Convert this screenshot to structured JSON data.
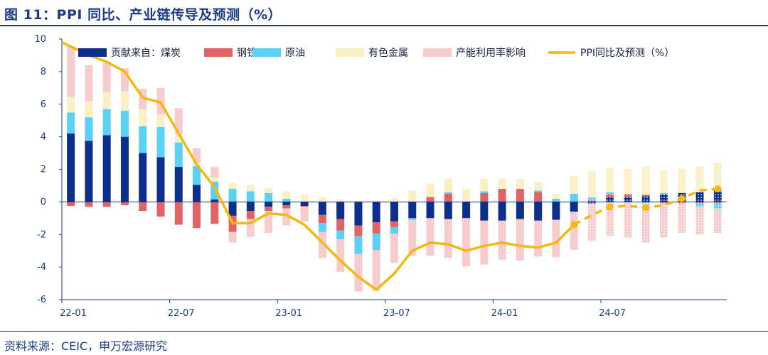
{
  "header": {
    "title": "图 11：PPI 同比、产业链传导及预测（%）"
  },
  "footer": {
    "source": "资料来源：CEIC，申万宏源研究"
  },
  "colors": {
    "coal": "#0d2f8c",
    "steel": "#e06464",
    "oil": "#5bd1f5",
    "metals": "#fbefc4",
    "capacity": "#f7cccc",
    "ppi": "#f5b80f",
    "axis": "#1a3a8a"
  },
  "chart_data": {
    "type": "bar",
    "stacked": true,
    "x": [
      "22-01",
      "22-02",
      "22-03",
      "22-04",
      "22-05",
      "22-06",
      "22-07",
      "22-08",
      "22-09",
      "22-10",
      "22-11",
      "22-12",
      "23-01",
      "23-02",
      "23-03",
      "23-04",
      "23-05",
      "23-06",
      "23-07",
      "23-08",
      "23-09",
      "23-10",
      "23-11",
      "23-12",
      "24-01",
      "24-02",
      "24-03",
      "24-04",
      "24-05",
      "24-06",
      "24-07",
      "24-08",
      "24-09",
      "24-10",
      "24-11",
      "24-12",
      "25-01"
    ],
    "xticks": [
      "22-01",
      "22-07",
      "23-01",
      "23-07",
      "24-01",
      "24-07"
    ],
    "ylim": [
      -6,
      10
    ],
    "yticks": [
      -6,
      -4,
      -2,
      0,
      2,
      4,
      6,
      8,
      10
    ],
    "forecast_start": "24-06",
    "series": [
      {
        "name": "贡献来自：煤炭",
        "key": "coal",
        "values": [
          4.2,
          3.75,
          4.1,
          4.0,
          3.0,
          2.75,
          2.15,
          1.05,
          0.15,
          -0.85,
          -0.55,
          -0.3,
          -0.2,
          -0.25,
          -0.8,
          -1.05,
          -1.45,
          -1.25,
          -1.2,
          -1.0,
          -1.0,
          -1.05,
          -1.0,
          -1.15,
          -1.15,
          -1.05,
          -1.15,
          -1.1,
          -0.6,
          -0.1,
          0.3,
          0.3,
          0.35,
          0.45,
          0.55,
          0.6,
          0.7
        ]
      },
      {
        "name": "钢铁",
        "key": "steel",
        "values": [
          -0.25,
          -0.3,
          -0.3,
          -0.2,
          -0.55,
          -0.9,
          -1.4,
          -1.6,
          -1.35,
          -1.0,
          -0.5,
          -0.25,
          -0.2,
          -0.05,
          -0.5,
          -0.7,
          -0.65,
          -0.7,
          -0.35,
          0.0,
          0.3,
          0.5,
          0.0,
          0.55,
          0.8,
          0.8,
          0.6,
          0.0,
          0.0,
          0.1,
          0.2,
          0.2,
          0.1,
          -0.1,
          -0.1,
          -0.1,
          -0.1
        ]
      },
      {
        "name": "原油",
        "key": "oil",
        "values": [
          1.3,
          1.45,
          1.6,
          1.6,
          1.65,
          1.85,
          1.5,
          1.15,
          1.1,
          0.8,
          0.65,
          0.55,
          0.2,
          0.0,
          -0.55,
          -0.55,
          -1.1,
          -1.0,
          -0.4,
          -0.1,
          0.0,
          0.1,
          0.0,
          0.1,
          0.0,
          0.0,
          0.1,
          0.2,
          0.5,
          0.2,
          0.1,
          0.0,
          -0.1,
          0.1,
          0.0,
          -0.2,
          -0.3
        ]
      },
      {
        "name": "有色金属",
        "key": "metals",
        "values": [
          0.95,
          1.0,
          1.05,
          1.2,
          1.05,
          0.75,
          0.5,
          0.2,
          0.25,
          0.35,
          0.4,
          0.3,
          0.45,
          0.45,
          0.3,
          0.15,
          0.1,
          0.0,
          0.25,
          0.7,
          0.85,
          0.8,
          0.8,
          0.75,
          0.65,
          0.6,
          0.5,
          0.3,
          1.1,
          1.6,
          1.5,
          1.55,
          1.7,
          1.4,
          1.5,
          1.6,
          1.7
        ]
      },
      {
        "name": "产能利用率影响",
        "key": "capacity",
        "values": [
          3.1,
          2.2,
          1.8,
          1.4,
          1.25,
          1.65,
          1.6,
          0.9,
          0.65,
          -0.65,
          -1.1,
          -1.35,
          -1.05,
          -0.9,
          -1.6,
          -2.0,
          -2.3,
          -2.5,
          -1.8,
          -2.2,
          -2.3,
          -2.4,
          -2.95,
          -2.7,
          -2.4,
          -2.55,
          -2.2,
          -2.3,
          -2.35,
          -2.3,
          -2.1,
          -2.2,
          -2.4,
          -2.1,
          -1.8,
          -1.7,
          -1.5
        ]
      }
    ],
    "line": {
      "name": "PPI同比及预测（%）",
      "key": "ppi",
      "values": [
        9.8,
        9.0,
        8.6,
        8.0,
        6.4,
        6.1,
        4.2,
        2.3,
        0.9,
        -1.3,
        -1.3,
        -0.7,
        -0.8,
        -1.4,
        -2.5,
        -3.6,
        -4.6,
        -5.4,
        -4.4,
        -3.0,
        -2.5,
        -2.6,
        -3.0,
        -2.7,
        -2.5,
        -2.7,
        -2.8,
        -2.5,
        -1.4,
        -0.8,
        -0.3,
        -0.25,
        -0.35,
        -0.2,
        0.2,
        0.7,
        0.8
      ]
    }
  }
}
